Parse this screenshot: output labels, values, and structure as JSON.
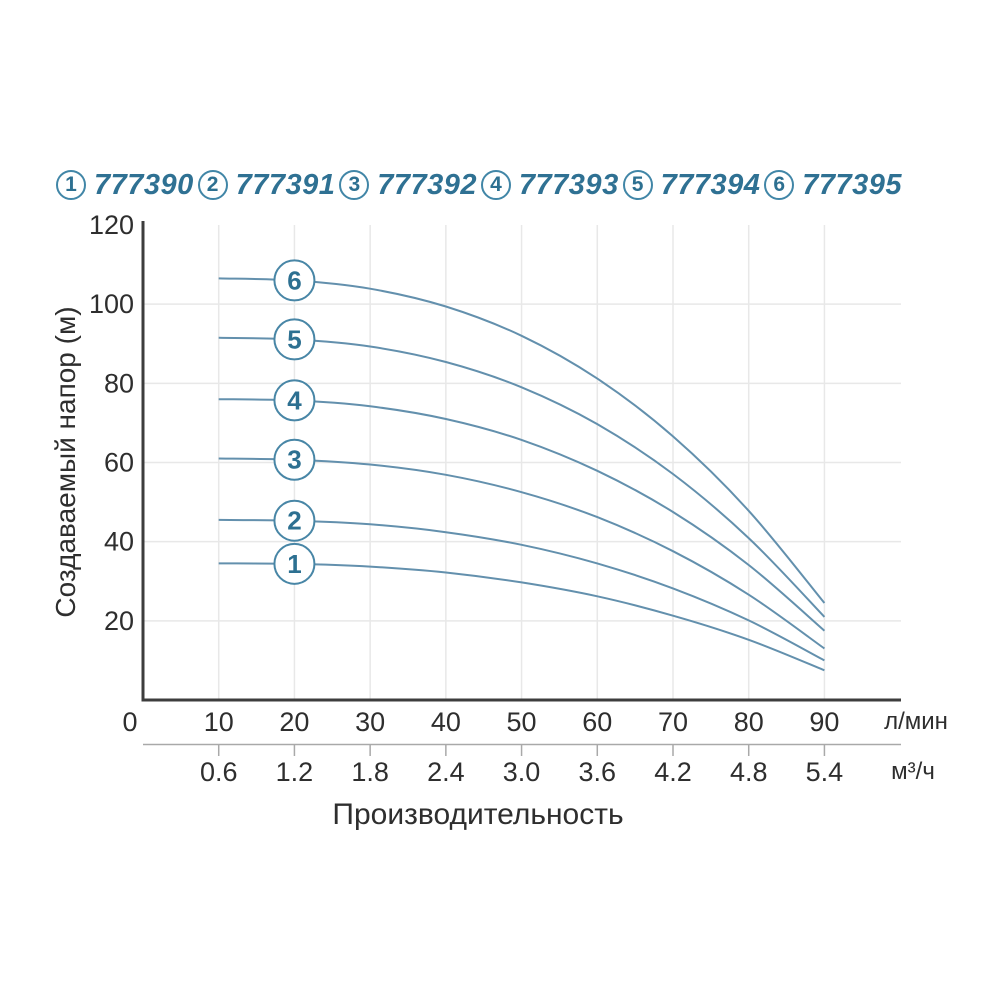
{
  "colors": {
    "curve": "#6390ad",
    "marker_ring": "#4886a6",
    "marker_number": "#2d7091",
    "legend_text": "#2f7193",
    "legend_ring": "#4186a7",
    "axis": "#3d3d3d",
    "grid": "#e8e8e8",
    "secondary_axis": "#a9a9a9",
    "tick_text": "#2e2e2e"
  },
  "legend": {
    "items": [
      {
        "index": "1",
        "label": "777390"
      },
      {
        "index": "2",
        "label": "777391"
      },
      {
        "index": "3",
        "label": "777392"
      },
      {
        "index": "4",
        "label": "777393"
      },
      {
        "index": "5",
        "label": "777394"
      },
      {
        "index": "6",
        "label": "777395"
      }
    ]
  },
  "chart": {
    "x_title": "Производительность",
    "y_title": "Создаваемый напор (м)",
    "primary_unit": "л/мин",
    "secondary_unit": "м³/ч",
    "x_ticks_primary": [
      0,
      10,
      20,
      30,
      40,
      50,
      60,
      70,
      80,
      90
    ],
    "x_ticks_secondary": [
      "0.6",
      "1.2",
      "1.8",
      "2.4",
      "3.0",
      "3.6",
      "4.2",
      "4.8",
      "5.4"
    ],
    "y_ticks": [
      20,
      40,
      60,
      80,
      100,
      120
    ]
  },
  "chart_data": {
    "type": "line",
    "title": "",
    "xlabel": "Производительность",
    "ylabel": "Создаваемый напор (м)",
    "x_unit_primary": "л/мин",
    "x_unit_secondary": "м³/ч",
    "xlim": [
      0,
      100
    ],
    "ylim": [
      0,
      120
    ],
    "grid": true,
    "legend_position": "top",
    "marker_x": 20,
    "x": [
      10,
      20,
      30,
      40,
      50,
      60,
      70,
      80,
      90
    ],
    "series": [
      {
        "name": "1",
        "model": "777390",
        "values": [
          34.5,
          34.4,
          33.7,
          32.2,
          29.7,
          26.2,
          21.3,
          15.2,
          7.5
        ]
      },
      {
        "name": "2",
        "model": "777391",
        "values": [
          45.5,
          45.3,
          44.4,
          42.4,
          39.2,
          34.5,
          28.2,
          20.1,
          10.0
        ]
      },
      {
        "name": "3",
        "model": "777392",
        "values": [
          61.0,
          60.7,
          59.5,
          56.9,
          52.5,
          46.2,
          37.6,
          26.6,
          13.0
        ]
      },
      {
        "name": "4",
        "model": "777393",
        "values": [
          76.0,
          75.7,
          74.2,
          71.0,
          65.7,
          57.9,
          47.5,
          34.1,
          17.5
        ]
      },
      {
        "name": "5",
        "model": "777394",
        "values": [
          91.5,
          91.1,
          89.3,
          85.4,
          79.0,
          69.7,
          57.1,
          40.9,
          21.0
        ]
      },
      {
        "name": "6",
        "model": "777395",
        "values": [
          106.5,
          106.0,
          103.9,
          99.4,
          92.0,
          81.2,
          66.6,
          47.8,
          24.5
        ]
      }
    ]
  }
}
